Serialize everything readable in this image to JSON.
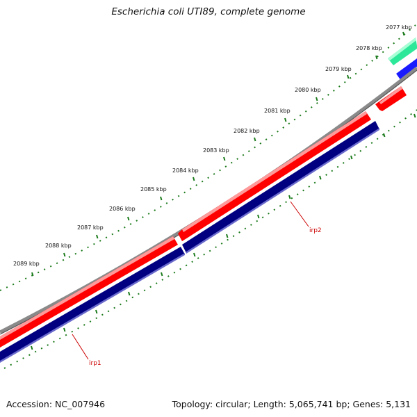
{
  "title": "Escherichia coli UTI89, complete genome",
  "footer": {
    "accession": "Accession: NC_007946",
    "summary": "Topology: circular; Length: 5,065,741 bp; Genes: 5,131"
  },
  "scale_labels": [
    "2077 kbp",
    "2078 kbp",
    "2079 kbp",
    "2080 kbp",
    "2081 kbp",
    "2082 kbp",
    "2083 kbp",
    "2084 kbp",
    "2085 kbp",
    "2086 kbp",
    "2087 kbp",
    "2088 kbp",
    "2089 kbp"
  ],
  "gene_labels": [
    "irp2",
    "irp1"
  ],
  "colors": {
    "backbone": "#808080",
    "forward_feature": "#ff0000",
    "reverse_feature": "#000080",
    "other_forward": "#2ee89a",
    "other_reverse": "#1a1aff",
    "ticks": "#1a7a1a",
    "gene_label": "#cc0000"
  }
}
